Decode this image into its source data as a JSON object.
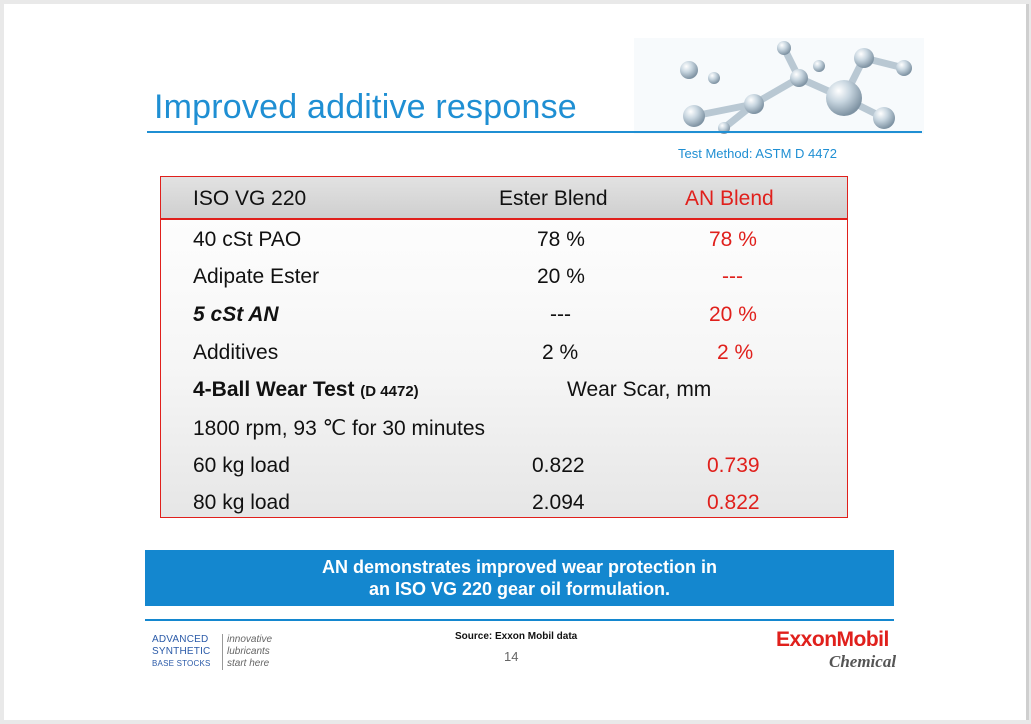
{
  "slide": {
    "title": "Improved additive response",
    "test_method": "Test Method:  ASTM D 4472"
  },
  "table": {
    "headers": [
      "ISO VG 220",
      "Ester Blend",
      "AN Blend"
    ],
    "rows": [
      {
        "label": "40 cSt PAO",
        "ester": "78 %",
        "an": "78 %"
      },
      {
        "label": "Adipate Ester",
        "ester": "20 %",
        "an": "---"
      },
      {
        "label": "5 cSt AN",
        "ester": "---",
        "an": "20 %"
      },
      {
        "label": "Additives",
        "ester": "2 %",
        "an": "2 %"
      }
    ],
    "wear_test": {
      "label": "4-Ball Wear Test",
      "label_suffix": "(D 4472)",
      "unit_label": "Wear Scar, mm",
      "conditions": "1800 rpm, 93 ℃ for 30 minutes"
    },
    "load_rows": [
      {
        "label": "60 kg load",
        "ester": "0.822",
        "an": "0.739"
      },
      {
        "label": "80 kg load",
        "ester": "2.094",
        "an": "0.822"
      }
    ]
  },
  "banner": {
    "line1": "AN demonstrates improved wear protection in",
    "line2": "an ISO VG 220 gear oil formulation."
  },
  "footer": {
    "left_logo": {
      "line1": "ADVANCED",
      "line2": "SYNTHETIC",
      "line3": "BASE STOCKS",
      "tag1": "innovative",
      "tag2": "lubricants",
      "tag3": "start here"
    },
    "source": "Source: Exxon Mobil data",
    "page_number": "14",
    "brand": "ExxonMobil",
    "brand_sub": "Chemical"
  },
  "colors": {
    "accent_blue": "#1f8fd3",
    "brand_red": "#e0201c",
    "banner_blue": "#1487cf"
  }
}
